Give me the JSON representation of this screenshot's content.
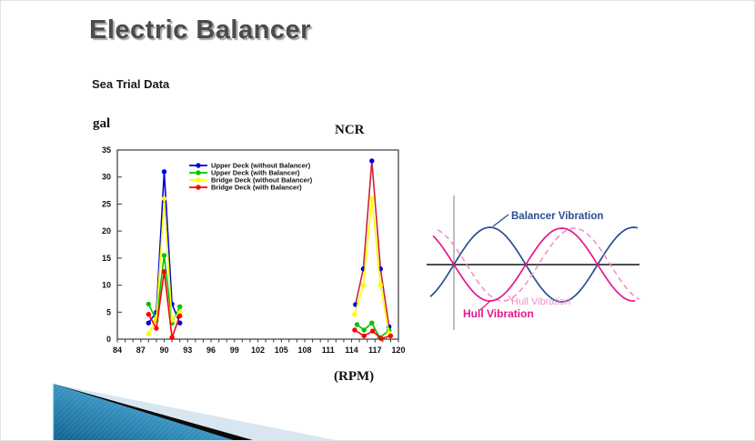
{
  "slide": {
    "title": "Electric Balancer",
    "subtitle": "Sea Trial Data"
  },
  "chart_data": {
    "type": "line",
    "title": "Sea Trial Data",
    "y_unit": "gal",
    "x_unit": "(RPM)",
    "annotation": "NCR",
    "xlim": [
      84,
      120
    ],
    "ylim": [
      0,
      35
    ],
    "x_ticks": [
      84,
      87,
      90,
      93,
      96,
      99,
      102,
      105,
      108,
      111,
      114,
      117,
      120
    ],
    "y_ticks": [
      0,
      5,
      10,
      15,
      20,
      25,
      30,
      35
    ],
    "grid": false,
    "legend_position": "top-center",
    "series": [
      {
        "name": "Upper Deck (without Balancer)",
        "color": "#0000dd",
        "segments": [
          {
            "line_color": "#0000dd",
            "points": [
              [
                88,
                3
              ],
              [
                89,
                5
              ],
              [
                90,
                31
              ],
              [
                91,
                6.5
              ],
              [
                92,
                3
              ]
            ]
          },
          {
            "line_color": "#cc2233",
            "points": [
              [
                114.5,
                6.4
              ],
              [
                115.5,
                13
              ],
              [
                116.6,
                33
              ],
              [
                117.7,
                13
              ],
              [
                118.8,
                2.3
              ]
            ]
          }
        ]
      },
      {
        "name": "Upper Deck (with Balancer)",
        "color": "#00c400",
        "segments": [
          {
            "line_color": "#00c400",
            "points": [
              [
                88,
                6.5
              ],
              [
                89,
                3.5
              ],
              [
                90,
                15.5
              ],
              [
                91,
                3
              ],
              [
                92,
                6
              ]
            ]
          },
          {
            "line_color": "#00c400",
            "points": [
              [
                114.7,
                2.7
              ],
              [
                115.6,
                1.7
              ],
              [
                116.6,
                3
              ],
              [
                117.6,
                0.3
              ],
              [
                118.8,
                1.6
              ]
            ]
          }
        ]
      },
      {
        "name": "Bridge Deck (without Balancer)",
        "color": "#ffff00",
        "segments": [
          {
            "line_color": "#ffff00",
            "points": [
              [
                88,
                1
              ],
              [
                89,
                3.7
              ],
              [
                90,
                26
              ],
              [
                91,
                3.5
              ],
              [
                92,
                5
              ]
            ]
          },
          {
            "line_color": "#ffff00",
            "points": [
              [
                114.4,
                4.6
              ],
              [
                115.5,
                10
              ],
              [
                116.6,
                26
              ],
              [
                117.7,
                10
              ],
              [
                118.8,
                1.1
              ]
            ]
          }
        ]
      },
      {
        "name": "Bridge Deck (with Balancer)",
        "color": "#ff0000",
        "segments": [
          {
            "line_color": "#ff0000",
            "points": [
              [
                88,
                4.6
              ],
              [
                89,
                2
              ],
              [
                90,
                12.5
              ],
              [
                91,
                0.3
              ],
              [
                92,
                4.3
              ]
            ]
          },
          {
            "line_color": "#ff0000",
            "points": [
              [
                114.4,
                1.7
              ],
              [
                115.6,
                0.6
              ],
              [
                116.7,
                1.5
              ],
              [
                117.8,
                0.1
              ],
              [
                119,
                0.6
              ]
            ]
          }
        ]
      }
    ]
  },
  "diagram": {
    "balancer_label": "Balancer Vibration",
    "hull_label_light": "Hull Vibration",
    "hull_label": "Hull Vibration",
    "colors": {
      "balancer": "#2b4c93",
      "hull": "#e8158c",
      "hull_light": "#f48fc5",
      "axis": "#333333",
      "vline": "#a8a8a8"
    }
  },
  "decoration": {
    "pale_fill": "#d7e6f0",
    "stripe_fill": "#0a0a0a",
    "wedge_dark": "#10618f",
    "wedge_mid": "#3e9ac8",
    "wedge_light": "#83cce8"
  }
}
